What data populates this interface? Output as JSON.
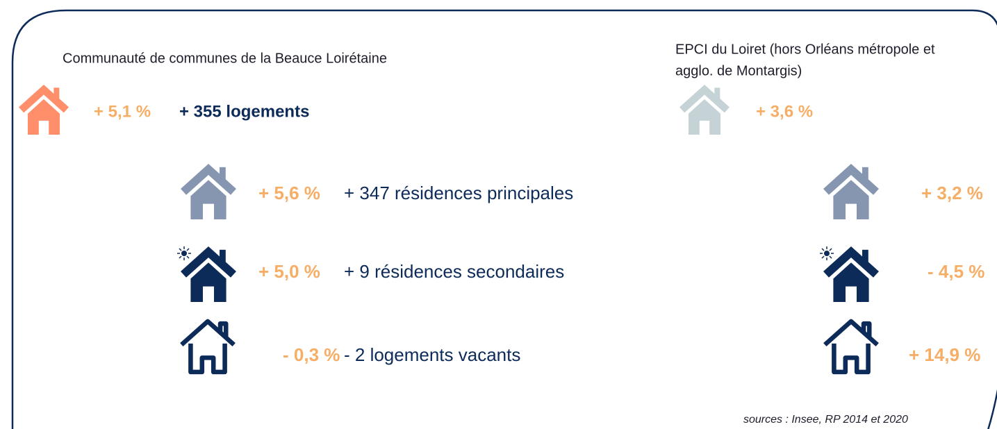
{
  "left": {
    "title": "Communauté de communes de la Beauce Loirétaine",
    "total": {
      "pct": "+ 5,1 %",
      "label": "+ 355 logements"
    },
    "rows": [
      {
        "pct": "+ 5,6 %",
        "label": "+ 347 résidences principales"
      },
      {
        "pct": "+ 5,0 %",
        "label": "+ 9 résidences secondaires"
      },
      {
        "pct": "- 0,3 %",
        "label": "- 2 logements vacants"
      }
    ]
  },
  "right": {
    "title": [
      "EPCI du Loiret (hors Orléans métropole et",
      "agglo. de Montargis)"
    ],
    "total": {
      "pct": "+ 3,6 %"
    },
    "rows": [
      {
        "pct": "+ 3,2 %"
      },
      {
        "pct": "- 4,5 %"
      },
      {
        "pct": "+ 14,9 %"
      }
    ]
  },
  "source": "sources : Insee, RP 2014 et 2020"
}
